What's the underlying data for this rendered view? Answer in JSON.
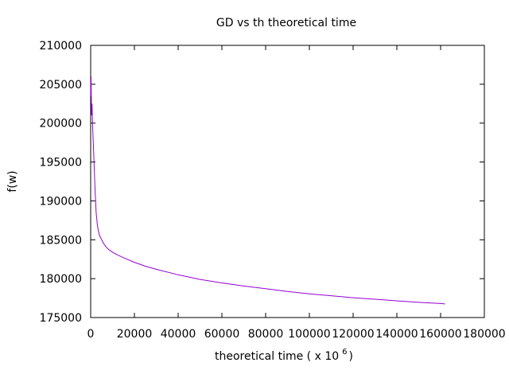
{
  "chart_data": {
    "type": "line",
    "title": "GD vs th theoretical time",
    "xlabel": "theoretical time ( x 10",
    "xlabel_superscript": "6",
    "xlabel_suffix": ")",
    "ylabel": "f(w)",
    "xlim": [
      0,
      180000
    ],
    "ylim": [
      175000,
      210000
    ],
    "x_ticks": [
      0,
      20000,
      40000,
      60000,
      80000,
      100000,
      120000,
      140000,
      160000,
      180000
    ],
    "y_ticks": [
      175000,
      180000,
      185000,
      190000,
      195000,
      200000,
      205000,
      210000
    ],
    "grid": false,
    "series_color": "#9400d3",
    "series": [
      {
        "x": [
          0,
          200,
          400,
          600,
          900,
          1200,
          1600,
          2000,
          2500,
          3000,
          3500,
          4000,
          5000,
          6000,
          7000,
          8000,
          10000,
          12000,
          15000,
          20000,
          25000,
          30000,
          40000,
          50000,
          60000,
          70000,
          80000,
          90000,
          100000,
          110000,
          120000,
          130000,
          140000,
          150000,
          160000,
          162000
        ],
        "y": [
          203500,
          206000,
          201000,
          202500,
          199500,
          197500,
          194500,
          191500,
          188500,
          187000,
          186200,
          185600,
          185000,
          184500,
          184100,
          183800,
          183400,
          183100,
          182700,
          182100,
          181600,
          181200,
          180500,
          179900,
          179450,
          179050,
          178700,
          178350,
          178050,
          177800,
          177550,
          177350,
          177150,
          176950,
          176800,
          176750
        ]
      }
    ]
  }
}
